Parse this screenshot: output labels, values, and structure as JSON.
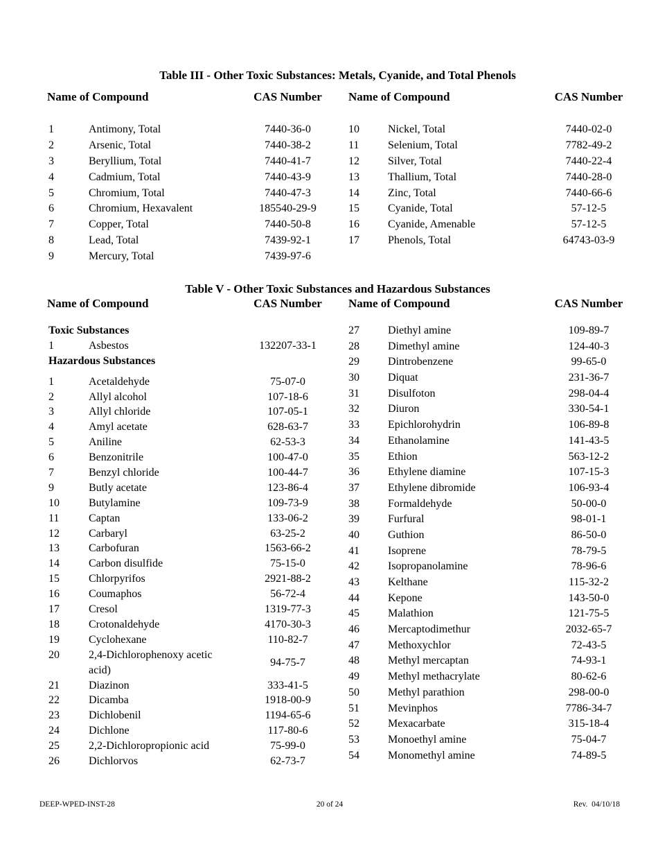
{
  "page": {
    "colors": {
      "background": "#ffffff",
      "text": "#000000"
    },
    "footer": {
      "left": "DEEP-WPED-INST-28",
      "center": "20 of 24",
      "right": "Rev.  04/10/18"
    }
  },
  "table3": {
    "title": "Table III - Other Toxic Substances: Metals, Cyanide, and Total Phenols",
    "headers": [
      "Name of Compound",
      "CAS Number",
      "Name of Compound",
      "CAS Number"
    ],
    "left_rows": [
      {
        "num": "1",
        "name": "Antimony, Total",
        "cas": "7440-36-0"
      },
      {
        "num": "2",
        "name": "Arsenic, Total",
        "cas": "7440-38-2"
      },
      {
        "num": "3",
        "name": "Beryllium, Total",
        "cas": "7440-41-7"
      },
      {
        "num": "4",
        "name": "Cadmium, Total",
        "cas": "7440-43-9"
      },
      {
        "num": "5",
        "name": "Chromium, Total",
        "cas": "7440-47-3"
      },
      {
        "num": "6",
        "name": "Chromium, Hexavalent",
        "cas": "185540-29-9"
      },
      {
        "num": "7",
        "name": "Copper, Total",
        "cas": "7440-50-8"
      },
      {
        "num": "8",
        "name": "Lead, Total",
        "cas": "7439-92-1"
      },
      {
        "num": "9",
        "name": "Mercury, Total",
        "cas": "7439-97-6"
      }
    ],
    "right_rows": [
      {
        "num": "10",
        "name": "Nickel, Total",
        "cas": "7440-02-0"
      },
      {
        "num": "11",
        "name": "Selenium, Total",
        "cas": "7782-49-2"
      },
      {
        "num": "12",
        "name": "Silver, Total",
        "cas": "7440-22-4"
      },
      {
        "num": "13",
        "name": "Thallium, Total",
        "cas": "7440-28-0"
      },
      {
        "num": "14",
        "name": "Zinc, Total",
        "cas": "7440-66-6"
      },
      {
        "num": "15",
        "name": "Cyanide, Total",
        "cas": "57-12-5"
      },
      {
        "num": "16",
        "name": "Cyanide, Amenable",
        "cas": "57-12-5"
      },
      {
        "num": "17",
        "name": "Phenols, Total",
        "cas": "64743-03-9"
      }
    ]
  },
  "table5": {
    "title": "Table V - Other Toxic Substances and Hazardous Substances",
    "headers": [
      "Name of Compound",
      "CAS Number",
      "Name of Compound",
      "CAS Number"
    ],
    "left_column": [
      {
        "heading": "Toxic Substances"
      },
      {
        "num": "1",
        "name": "Asbestos",
        "cas": "132207-33-1"
      },
      {
        "heading": "Hazardous Substances"
      },
      {
        "num": "1",
        "name": "Acetaldehyde",
        "cas": "75-07-0"
      },
      {
        "num": "2",
        "name": "Allyl alcohol",
        "cas": "107-18-6"
      },
      {
        "num": "3",
        "name": "Allyl chloride",
        "cas": "107-05-1"
      },
      {
        "num": "4",
        "name": "Amyl acetate",
        "cas": "628-63-7"
      },
      {
        "num": "5",
        "name": "Aniline",
        "cas": "62-53-3"
      },
      {
        "num": "6",
        "name": "Benzonitrile",
        "cas": "100-47-0"
      },
      {
        "num": "7",
        "name": "Benzyl chloride",
        "cas": "100-44-7"
      },
      {
        "num": "9",
        "name": "Butly acetate",
        "cas": "123-86-4"
      },
      {
        "num": "10",
        "name": "Butylamine",
        "cas": "109-73-9"
      },
      {
        "num": "11",
        "name": "Captan",
        "cas": "133-06-2"
      },
      {
        "num": "12",
        "name": "Carbaryl",
        "cas": "63-25-2"
      },
      {
        "num": "13",
        "name": "Carbofuran",
        "cas": "1563-66-2"
      },
      {
        "num": "14",
        "name": "Carbon disulfide",
        "cas": "75-15-0"
      },
      {
        "num": "15",
        "name": "Chlorpyrifos",
        "cas": "2921-88-2"
      },
      {
        "num": "16",
        "name": "Coumaphos",
        "cas": "56-72-4"
      },
      {
        "num": "17",
        "name": "Cresol",
        "cas": "1319-77-3"
      },
      {
        "num": "18",
        "name": "Crotonaldehyde",
        "cas": "4170-30-3"
      },
      {
        "num": "19",
        "name": "Cyclohexane",
        "cas": "110-82-7"
      },
      {
        "num": "20",
        "name": "2,4-Dichlorophenoxy acetic",
        "name2": "acid)",
        "cas": "94-75-7"
      },
      {
        "num": "21",
        "name": "Diazinon",
        "cas": "333-41-5"
      },
      {
        "num": "22",
        "name": "Dicamba",
        "cas": "1918-00-9"
      },
      {
        "num": "23",
        "name": "Dichlobenil",
        "cas": "1194-65-6"
      },
      {
        "num": "24",
        "name": "Dichlone",
        "cas": "117-80-6"
      },
      {
        "num": "25",
        "name": "2,2-Dichloropropionic acid",
        "cas": "75-99-0"
      },
      {
        "num": "26",
        "name": "Dichlorvos",
        "cas": "62-73-7"
      }
    ],
    "right_column": [
      {
        "num": "27",
        "name": "Diethyl amine",
        "cas": "109-89-7"
      },
      {
        "num": "28",
        "name": "Dimethyl amine",
        "cas": "124-40-3"
      },
      {
        "num": "29",
        "name": "Dintrobenzene",
        "cas": "99-65-0"
      },
      {
        "num": "30",
        "name": "Diquat",
        "cas": "231-36-7"
      },
      {
        "num": "31",
        "name": "Disulfoton",
        "cas": "298-04-4"
      },
      {
        "num": "32",
        "name": "Diuron",
        "cas": "330-54-1"
      },
      {
        "num": "33",
        "name": "Epichlorohydrin",
        "cas": "106-89-8"
      },
      {
        "num": "34",
        "name": "Ethanolamine",
        "cas": "141-43-5"
      },
      {
        "num": "35",
        "name": "Ethion",
        "cas": "563-12-2"
      },
      {
        "num": "36",
        "name": "Ethylene diamine",
        "cas": "107-15-3"
      },
      {
        "num": "37",
        "name": "Ethylene dibromide",
        "cas": "106-93-4"
      },
      {
        "num": "38",
        "name": "Formaldehyde",
        "cas": "50-00-0"
      },
      {
        "num": "39",
        "name": "Furfural",
        "cas": "98-01-1"
      },
      {
        "num": "40",
        "name": "Guthion",
        "cas": "86-50-0"
      },
      {
        "num": "41",
        "name": "Isoprene",
        "cas": "78-79-5"
      },
      {
        "num": "42",
        "name": "Isopropanolamine",
        "cas": "78-96-6"
      },
      {
        "num": "43",
        "name": "Kelthane",
        "cas": "115-32-2"
      },
      {
        "num": "44",
        "name": "Kepone",
        "cas": "143-50-0"
      },
      {
        "num": "45",
        "name": "Malathion",
        "cas": "121-75-5"
      },
      {
        "num": "46",
        "name": "Mercaptodimethur",
        "cas": "2032-65-7"
      },
      {
        "num": "47",
        "name": "Methoxychlor",
        "cas": "72-43-5"
      },
      {
        "num": "48",
        "name": "Methyl mercaptan",
        "cas": "74-93-1"
      },
      {
        "num": "49",
        "name": "Methyl methacrylate",
        "cas": "80-62-6"
      },
      {
        "num": "50",
        "name": "Methyl parathion",
        "cas": "298-00-0"
      },
      {
        "num": "51",
        "name": "Mevinphos",
        "cas": "7786-34-7"
      },
      {
        "num": "52",
        "name": "Mexacarbate",
        "cas": "315-18-4"
      },
      {
        "num": "53",
        "name": "Monoethyl amine",
        "cas": "75-04-7"
      },
      {
        "num": "54",
        "name": "Monomethyl amine",
        "cas": "74-89-5"
      }
    ]
  }
}
